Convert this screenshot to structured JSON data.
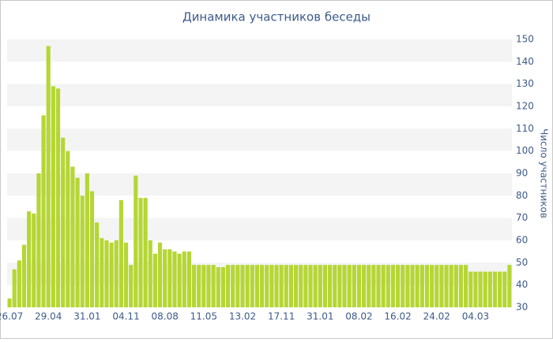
{
  "chart_data": {
    "type": "bar",
    "title": "Динамика участников беседы",
    "y_axis_label": "Число участников",
    "categories": [
      "26.07",
      null,
      null,
      null,
      null,
      null,
      null,
      null,
      "29.04",
      null,
      null,
      null,
      null,
      null,
      null,
      null,
      "31.01",
      null,
      null,
      null,
      null,
      null,
      null,
      null,
      "04.11",
      null,
      null,
      null,
      null,
      null,
      null,
      null,
      "08.08",
      null,
      null,
      null,
      null,
      null,
      null,
      null,
      "11.05",
      null,
      null,
      null,
      null,
      null,
      null,
      null,
      "13.02",
      null,
      null,
      null,
      null,
      null,
      null,
      null,
      "17.11",
      null,
      null,
      null,
      null,
      null,
      null,
      null,
      "31.01",
      null,
      null,
      null,
      null,
      null,
      null,
      null,
      "08.02",
      null,
      null,
      null,
      null,
      null,
      null,
      null,
      "16.02",
      null,
      null,
      null,
      null,
      null,
      null,
      null,
      "24.02",
      null,
      null,
      null,
      null,
      null,
      null,
      null,
      "04.03",
      null,
      null,
      null,
      null,
      null,
      null,
      null
    ],
    "values": [
      34,
      47,
      51,
      58,
      73,
      72,
      90,
      116,
      147,
      129,
      128,
      106,
      100,
      93,
      88,
      80,
      90,
      82,
      68,
      61,
      60,
      59,
      60,
      78,
      59,
      49,
      89,
      79,
      79,
      60,
      54,
      59,
      56,
      56,
      55,
      54,
      55,
      55,
      49,
      49,
      49,
      49,
      49,
      48,
      48,
      49,
      49,
      49,
      49,
      49,
      49,
      49,
      49,
      49,
      49,
      49,
      49,
      49,
      49,
      49,
      49,
      49,
      49,
      49,
      49,
      49,
      49,
      49,
      49,
      49,
      49,
      49,
      49,
      49,
      49,
      49,
      49,
      49,
      49,
      49,
      49,
      49,
      49,
      49,
      49,
      49,
      49,
      49,
      49,
      49,
      49,
      49,
      49,
      49,
      49,
      46,
      46,
      46,
      46,
      46,
      46,
      46,
      46,
      49
    ],
    "color": "#b5d634",
    "ylim": [
      30,
      150
    ],
    "yticks": [
      30,
      40,
      50,
      60,
      70,
      80,
      90,
      100,
      110,
      120,
      130,
      140,
      150
    ],
    "grid": true
  }
}
